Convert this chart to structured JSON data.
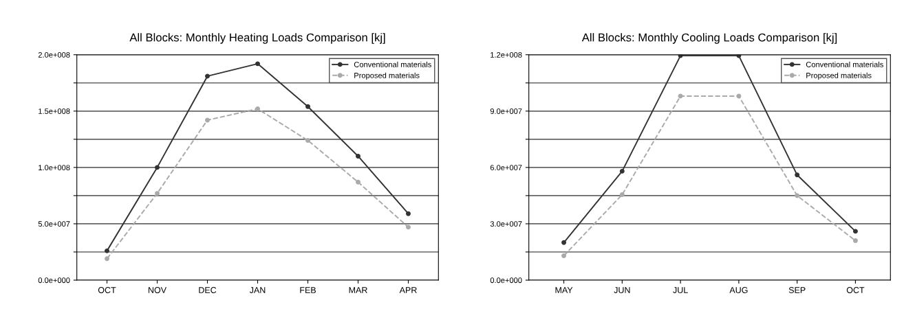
{
  "chart_data": [
    {
      "type": "line",
      "title": "All Blocks: Monthly Heating Loads Comparison [kj]",
      "categories": [
        "OCT",
        "NOV",
        "DEC",
        "JAN",
        "FEB",
        "MAR",
        "APR"
      ],
      "series": [
        {
          "name": "Conventional materials",
          "color": "#333333",
          "line_style": "solid",
          "values": [
            26000000,
            100000000,
            181000000,
            192000000,
            154000000,
            110000000,
            59000000
          ]
        },
        {
          "name": "Proposed materials",
          "color": "#aaaaaa",
          "line_style": "dashed",
          "values": [
            19000000,
            77000000,
            142000000,
            152000000,
            124000000,
            87000000,
            47000000
          ]
        }
      ],
      "ylim": [
        0,
        200000000
      ],
      "yticks": [
        {
          "value": 0,
          "label": "0.0e+000"
        },
        {
          "value": 25000000,
          "label": null
        },
        {
          "value": 50000000,
          "label": "5.0e+007"
        },
        {
          "value": 75000000,
          "label": null
        },
        {
          "value": 100000000,
          "label": "1.0e+008"
        },
        {
          "value": 125000000,
          "label": null
        },
        {
          "value": 150000000,
          "label": "1.5e+008"
        },
        {
          "value": 175000000,
          "label": null
        },
        {
          "value": 200000000,
          "label": "2.0e+008"
        }
      ],
      "grid": "y",
      "legend": "top right",
      "marker": "circle"
    },
    {
      "type": "line",
      "title": "All Blocks: Monthly Cooling Loads Comparison [kj]",
      "categories": [
        "MAY",
        "JUN",
        "JUL",
        "AUG",
        "SEP",
        "OCT"
      ],
      "series": [
        {
          "name": "Conventional materials",
          "color": "#333333",
          "line_style": "solid",
          "values": [
            20000000,
            58000000,
            119500000,
            119500000,
            56000000,
            26000000
          ]
        },
        {
          "name": "Proposed materials",
          "color": "#aaaaaa",
          "line_style": "dashed",
          "values": [
            13000000,
            45500000,
            98000000,
            98000000,
            45000000,
            21000000
          ]
        }
      ],
      "ylim": [
        0,
        120000000
      ],
      "yticks": [
        {
          "value": 0,
          "label": "0.0e+000"
        },
        {
          "value": 15000000,
          "label": null
        },
        {
          "value": 30000000,
          "label": "3.0e+007"
        },
        {
          "value": 45000000,
          "label": null
        },
        {
          "value": 60000000,
          "label": "6.0e+007"
        },
        {
          "value": 75000000,
          "label": null
        },
        {
          "value": 90000000,
          "label": "9.0e+007"
        },
        {
          "value": 105000000,
          "label": null
        },
        {
          "value": 120000000,
          "label": "1.2e+008"
        }
      ],
      "grid": "y",
      "legend": "top right",
      "marker": "circle"
    }
  ]
}
